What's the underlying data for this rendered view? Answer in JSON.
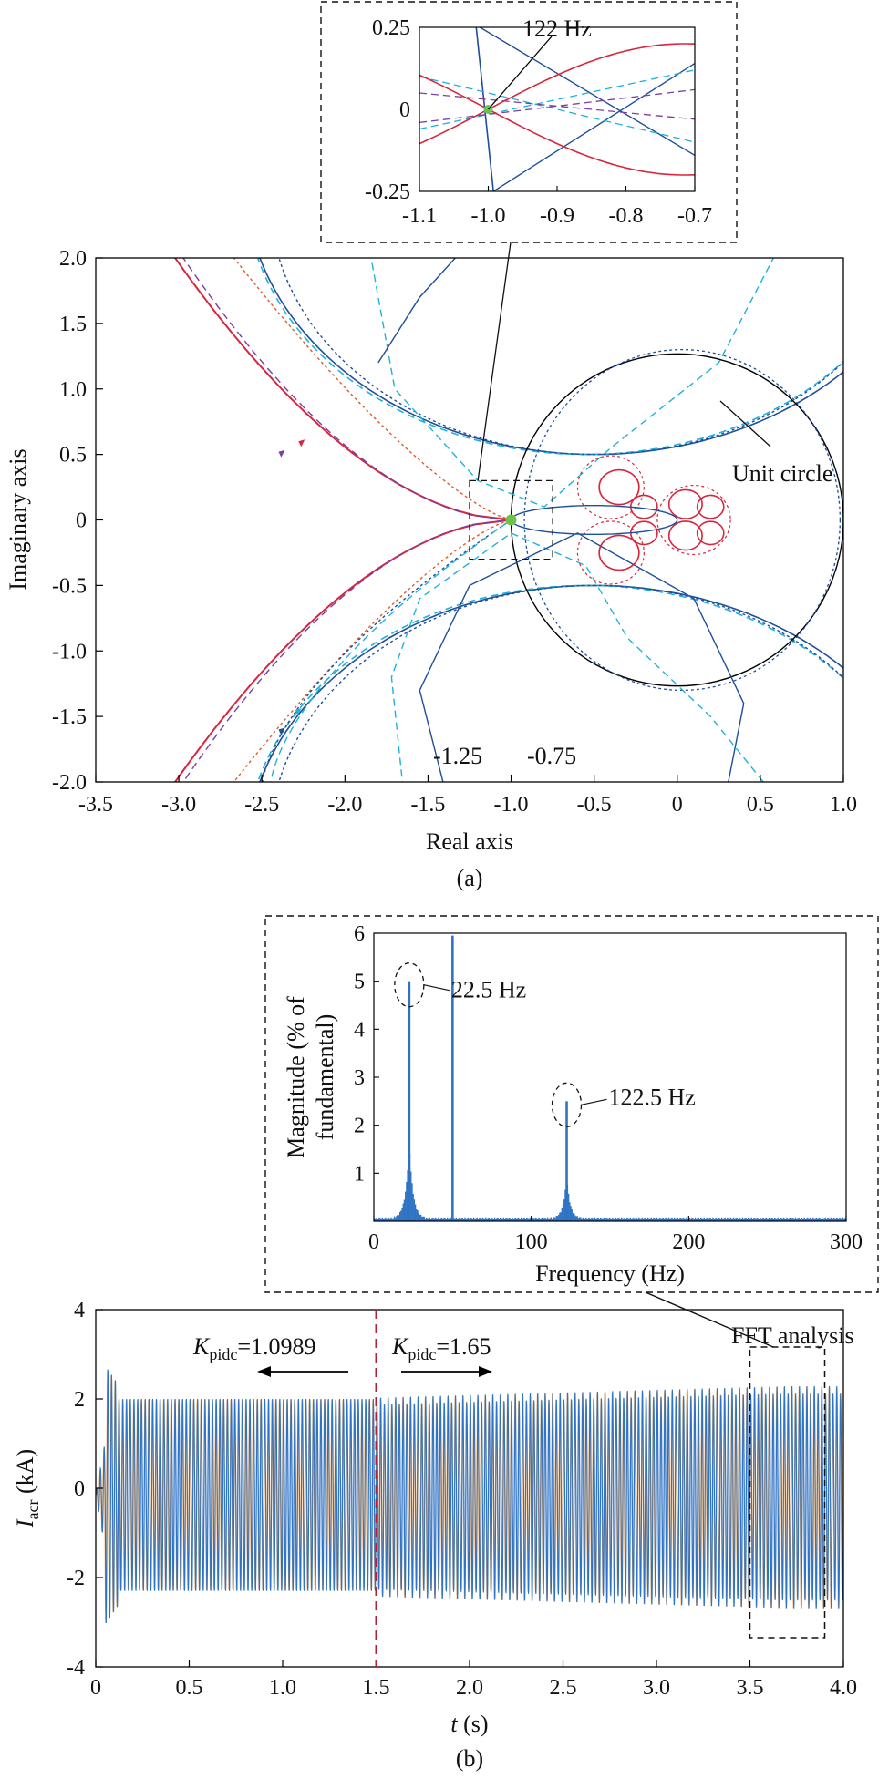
{
  "figure": {
    "panel_a_caption": "(a)",
    "panel_b_caption": "(b)"
  },
  "chart_data": [
    {
      "id": "nyquist",
      "type": "line",
      "xlabel": "Real axis",
      "ylabel": "Imaginary axis",
      "xlim": [
        -3.5,
        1.0
      ],
      "ylim": [
        -2.0,
        2.0
      ],
      "xticks": [
        "-3.5",
        "-3.0",
        "-2.5",
        "-2.0",
        "-1.5",
        "-1.0",
        "-0.5",
        "0",
        "0.5",
        "1.0"
      ],
      "yticks": [
        "2.0",
        "1.5",
        "1.0",
        "0.5",
        "0",
        "-0.5",
        "-1.0",
        "-1.5",
        "-2.0"
      ],
      "annotations": {
        "unit_circle": "Unit circle",
        "k_low": "-1.25",
        "k_high": "-0.75"
      },
      "critical_point": [
        -1.0,
        0.0
      ],
      "unit_circle": {
        "center": [
          0,
          0
        ],
        "radius": 1
      },
      "colors": {
        "red": "#d7263d",
        "blue": "#1f4e9a",
        "cyan": "#1fb2d8",
        "purple": "#7a3fa0",
        "green": "#6cc24a"
      }
    },
    {
      "id": "nyquist-zoom",
      "type": "line",
      "title": "122 Hz",
      "xlim": [
        -1.1,
        -0.7
      ],
      "ylim": [
        -0.25,
        0.25
      ],
      "xticks": [
        "-1.1",
        "-1.0",
        "-0.9",
        "-0.8",
        "-0.7"
      ],
      "yticks": [
        "0.25",
        "0",
        "-0.25"
      ]
    },
    {
      "id": "fft",
      "type": "bar",
      "xlabel": "Frequency (Hz)",
      "ylabel_line1": "Magnitude (% of",
      "ylabel_line2": "fundamental)",
      "xlim": [
        0,
        300
      ],
      "ylim": [
        0,
        6
      ],
      "xticks": [
        "0",
        "100",
        "200",
        "300"
      ],
      "yticks": [
        "1",
        "2",
        "3",
        "4",
        "5",
        "6"
      ],
      "peaks": [
        {
          "label": "22.5 Hz",
          "x": 22.5,
          "y": 5.0
        },
        {
          "x": 50,
          "y": 5.95
        },
        {
          "label": "122.5 Hz",
          "x": 122.5,
          "y": 2.5
        }
      ],
      "color": "#2f73c4"
    },
    {
      "id": "time",
      "type": "line",
      "xlabel_var": "t",
      "xlabel_unit": " (s)",
      "ylabel_var": "I",
      "ylabel_sub": "acr",
      "ylabel_unit": " (kA)",
      "xlim": [
        0,
        4.0
      ],
      "ylim": [
        -4,
        4
      ],
      "xticks": [
        "0",
        "0.5",
        "1.0",
        "1.5",
        "2.0",
        "2.5",
        "3.0",
        "3.5",
        "4.0"
      ],
      "yticks": [
        "4",
        "2",
        "0",
        "-2",
        "-4"
      ],
      "switch_time": 1.5,
      "k_before": {
        "var": "K",
        "sub": "pidc",
        "value": "=1.0989"
      },
      "k_after": {
        "var": "K",
        "sub": "pidc",
        "value": "=1.65"
      },
      "fft_label": "FFT analysis",
      "fft_window": [
        3.5,
        3.9
      ],
      "amplitude_kA": [
        2.15,
        2.4
      ],
      "series_colors": [
        "#f29a3b",
        "#2f73c4"
      ]
    }
  ]
}
